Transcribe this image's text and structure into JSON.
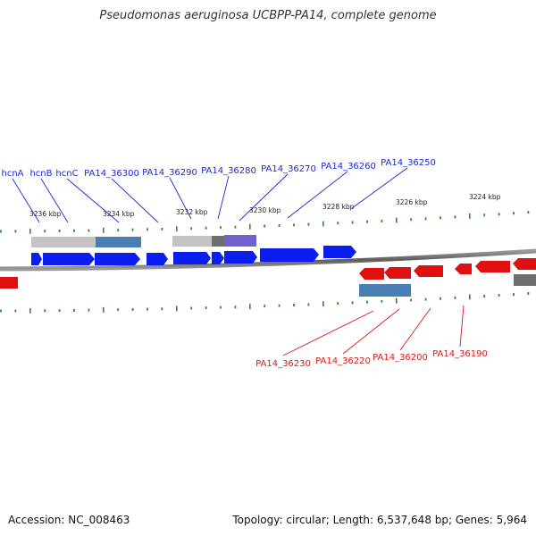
{
  "title": "Pseudomonas aeruginosa UCBPP-PA14, complete genome",
  "footer": {
    "accession": "Accession: NC_008463",
    "summary": "Topology: circular; Length: 6,537,648 bp; Genes: 5,964"
  },
  "colors": {
    "forward_gene": "#0a1ef0",
    "reverse_gene": "#e01010",
    "tick": "#2e8b2e",
    "backbone": "#6e6e6e",
    "feature_gray": "#c0c0c0",
    "feature_blue": "#4a7fb5",
    "feature_purple": "#7060d0"
  },
  "scale_labels": [
    "3236 kbp",
    "3234 kbp",
    "3232 kbp",
    "3230 kbp",
    "3228 kbp",
    "3226 kbp",
    "3224 kbp"
  ],
  "forward_genes": [
    "hcnA",
    "hcnB",
    "hcnC",
    "PA14_36300",
    "PA14_36290",
    "PA14_36280",
    "PA14_36270",
    "PA14_36260",
    "PA14_36250"
  ],
  "reverse_genes": [
    "PA14_36230",
    "PA14_36220",
    "PA14_36200",
    "PA14_36190"
  ]
}
